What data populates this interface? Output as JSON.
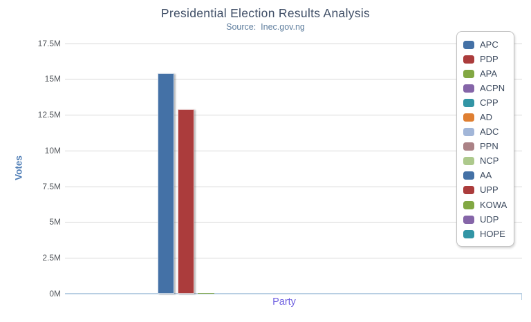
{
  "style": {
    "background": "#ffffff",
    "title_color": "#3f4e66",
    "subtitle_color": "#5f7e9e",
    "ylabel_color": "#4d7cb5",
    "xlabel_color": "#6e5fe0",
    "tick_label_color": "#54585d",
    "gridline_color": "#d7d7d7",
    "baseline_color": "#b9cfe3",
    "legend_border_color": "#c2c2c2",
    "legend_text_color": "#3c4a5e"
  },
  "chart_data": {
    "type": "bar",
    "title": "Presidential Election Results Analysis",
    "subtitle": "Source:  Inec.gov.ng",
    "xlabel": "Party",
    "ylabel": "Votes",
    "value_unit": "millions of votes",
    "ylim": [
      0,
      17.5
    ],
    "grid": true,
    "legend_position": "right",
    "ytick_values": [
      0,
      2.5,
      5,
      7.5,
      10,
      12.5,
      15,
      17.5
    ],
    "ytick_labels": [
      "0M",
      "2.5M",
      "5M",
      "7.5M",
      "10M",
      "12.5M",
      "15M",
      "17.5M"
    ],
    "series": [
      {
        "name": "APC",
        "value": 15.4,
        "color": "#4471a6"
      },
      {
        "name": "PDP",
        "value": 12.9,
        "color": "#ab3c3c"
      },
      {
        "name": "APA",
        "value": 0.05,
        "color": "#82a843"
      },
      {
        "name": "ACPN",
        "value": 0,
        "color": "#8565a8"
      },
      {
        "name": "CPP",
        "value": 0,
        "color": "#3295a5"
      },
      {
        "name": "AD",
        "value": 0,
        "color": "#df7f32"
      },
      {
        "name": "ADC",
        "value": 0,
        "color": "#a2b6d8"
      },
      {
        "name": "PPN",
        "value": 0,
        "color": "#ab8286"
      },
      {
        "name": "NCP",
        "value": 0,
        "color": "#adc98c"
      },
      {
        "name": "AA",
        "value": 0,
        "color": "#4471a6"
      },
      {
        "name": "UPP",
        "value": 0,
        "color": "#ab3c3c"
      },
      {
        "name": "KOWA",
        "value": 0,
        "color": "#82a843"
      },
      {
        "name": "UDP",
        "value": 0,
        "color": "#8565a8"
      },
      {
        "name": "HOPE",
        "value": 0,
        "color": "#3295a5"
      }
    ]
  }
}
